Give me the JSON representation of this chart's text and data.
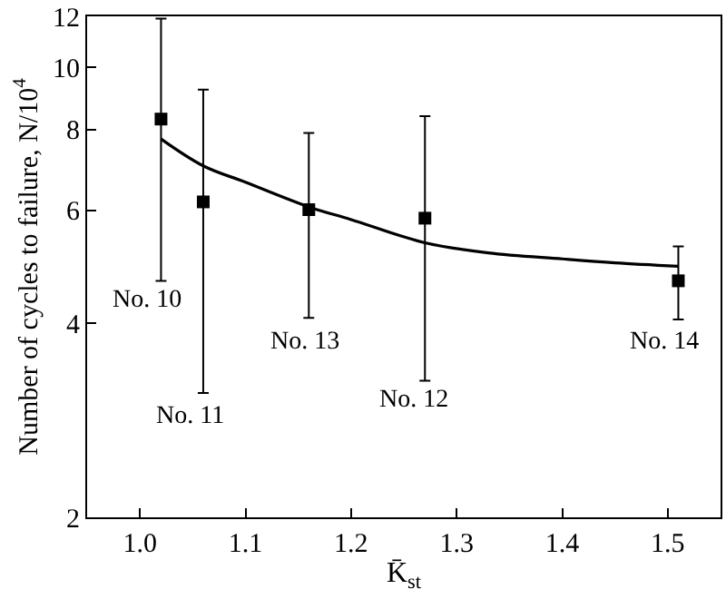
{
  "chart_data": {
    "type": "scatter",
    "xlabel": "K̄$_{st}$",
    "ylabel": "Number of cycles to failure, N/10$^{4}$",
    "log": "y",
    "xlim": [
      0.95,
      1.55
    ],
    "xticks": [
      {
        "value": 1.0,
        "label": "1.0"
      },
      1.1,
      1.2,
      1.3,
      1.4,
      1.5
    ],
    "ylim": [
      2,
      12
    ],
    "yticks": [
      2,
      4,
      6,
      8,
      10,
      12
    ],
    "series": [
      {
        "marker": "square",
        "color": "#000000",
        "x": [
          1.02,
          1.06,
          1.16,
          1.27,
          1.51
        ],
        "values": [
          8.31,
          6.18,
          6.01,
          5.83,
          4.66
        ],
        "errors": [
          [
            4.66,
            11.9
          ],
          [
            3.12,
            9.23
          ],
          [
            4.08,
            7.91
          ],
          [
            3.26,
            8.4
          ],
          [
            4.06,
            5.27
          ]
        ]
      },
      {
        "type": "line",
        "marker": "none",
        "line_style": "solid",
        "color": "#000000",
        "x": [
          1.02,
          1.06,
          1.1,
          1.16,
          1.2,
          1.27,
          1.33,
          1.4,
          1.45,
          1.51
        ],
        "values": [
          7.74,
          7.03,
          6.63,
          6.07,
          5.8,
          5.34,
          5.15,
          5.04,
          4.97,
          4.91
        ]
      }
    ],
    "annotations": [
      "No. 10",
      "No. 11",
      "No. 13",
      "No. 12",
      "No. 14"
    ]
  }
}
